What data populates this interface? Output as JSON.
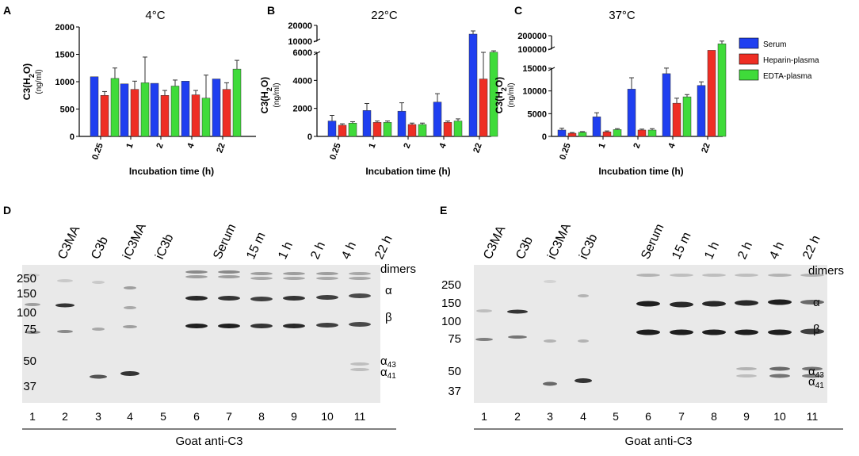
{
  "panels": {
    "A": {
      "letter": "A"
    },
    "B": {
      "letter": "B"
    },
    "C": {
      "letter": "C"
    },
    "D": {
      "letter": "D"
    },
    "E": {
      "letter": "E"
    }
  },
  "chart_data": [
    {
      "type": "bar",
      "panel": "A",
      "title": "4°C",
      "ylabel": "C3(H2O)",
      "ylabel_sub": "2",
      "yunit": "(ng/ml)",
      "xlabel": "Incubation time (h)",
      "categories": [
        "0.25",
        "1",
        "2",
        "4",
        "22"
      ],
      "ylim": [
        0,
        2000
      ],
      "yticks": [
        0,
        500,
        1000,
        1500,
        2000
      ],
      "series": [
        {
          "name": "Serum",
          "values": [
            1090,
            960,
            970,
            1010,
            1050
          ],
          "errors": [
            0,
            0,
            0,
            0,
            0
          ]
        },
        {
          "name": "Heparin-plasma",
          "values": [
            750,
            860,
            750,
            760,
            860
          ],
          "errors": [
            70,
            150,
            90,
            80,
            120
          ]
        },
        {
          "name": "EDTA-plasma",
          "values": [
            1060,
            980,
            920,
            700,
            1230
          ],
          "errors": [
            190,
            470,
            110,
            420,
            160
          ]
        }
      ]
    },
    {
      "type": "bar",
      "panel": "B",
      "title": "22°C",
      "ylabel": "C3(H2O)",
      "ylabel_sub": "2",
      "yunit": "(ng/ml)",
      "xlabel": "Incubation time (h)",
      "categories": [
        "0.25",
        "1",
        "2",
        "4",
        "22"
      ],
      "broken_axis": true,
      "ylim_lower": [
        0,
        6000
      ],
      "ylim_upper": [
        10000,
        20000
      ],
      "yticks": [
        0,
        2000,
        4000,
        6000,
        10000,
        20000
      ],
      "series": [
        {
          "name": "Serum",
          "values": [
            1100,
            1850,
            1800,
            2450,
            14500
          ],
          "errors": [
            400,
            500,
            600,
            600,
            2000
          ]
        },
        {
          "name": "Heparin-plasma",
          "values": [
            800,
            1000,
            850,
            1000,
            4100
          ],
          "errors": [
            100,
            100,
            100,
            100,
            1900
          ]
        },
        {
          "name": "EDTA-plasma",
          "values": [
            950,
            1000,
            850,
            1100,
            6050
          ],
          "errors": [
            100,
            100,
            100,
            150,
            500
          ]
        }
      ]
    },
    {
      "type": "bar",
      "panel": "C",
      "title": "37°C",
      "ylabel": "C3(H2O)",
      "ylabel_sub": "2",
      "yunit": "(ng/ml)",
      "xlabel": "Incubation time (h)",
      "categories": [
        "0.25",
        "1",
        "2",
        "4",
        "22"
      ],
      "broken_axis": true,
      "ylim_lower": [
        0,
        15000
      ],
      "ylim_upper": [
        100000,
        200000
      ],
      "yticks": [
        0,
        5000,
        10000,
        15000,
        100000,
        200000
      ],
      "series": [
        {
          "name": "Serum",
          "values": [
            1400,
            4300,
            10400,
            13800,
            11200
          ],
          "errors": [
            400,
            900,
            2500,
            1600,
            800
          ]
        },
        {
          "name": "Heparin-plasma",
          "values": [
            700,
            1000,
            1400,
            7300,
            95000
          ],
          "errors": [
            150,
            200,
            200,
            1100,
            0
          ]
        },
        {
          "name": "EDTA-plasma",
          "values": [
            900,
            1500,
            1400,
            8700,
            140000
          ],
          "errors": [
            150,
            200,
            300,
            500,
            20000
          ]
        }
      ],
      "legend": {
        "position": "top-right",
        "entries": [
          "Serum",
          "Heparin-plasma",
          "EDTA-plasma"
        ]
      }
    }
  ],
  "colors": {
    "Serum": "#1f3ff0",
    "Heparin-plasma": "#ee2e24",
    "EDTA-plasma": "#3fdb3a"
  },
  "blots": {
    "D": {
      "headers": [
        "C3MA",
        "C3b",
        "iC3MA",
        "iC3b",
        "Serum",
        "15 m",
        "1 h",
        "2 h",
        "4 h",
        "22 h"
      ],
      "mw_markers": [
        "250",
        "150",
        "100",
        "75",
        "50",
        "37"
      ],
      "right_labels": [
        "dimers",
        "α",
        "β",
        "α",
        "43",
        "α",
        "41"
      ],
      "lane_numbers": [
        "1",
        "2",
        "3",
        "4",
        "5",
        "6",
        "7",
        "8",
        "9",
        "10",
        "11"
      ],
      "antibody": "Goat anti-C3"
    },
    "E": {
      "headers": [
        "C3MA",
        "C3b",
        "iC3MA",
        "iC3b",
        "Serum",
        "15 m",
        "1 h",
        "2 h",
        "4 h",
        "22 h"
      ],
      "mw_markers": [
        "250",
        "150",
        "100",
        "75",
        "50",
        "37"
      ],
      "right_labels": [
        "dimers",
        "α",
        "β",
        "α",
        "43",
        "α",
        "41"
      ],
      "lane_numbers": [
        "1",
        "2",
        "3",
        "4",
        "5",
        "6",
        "7",
        "8",
        "9",
        "10",
        "11"
      ],
      "antibody": "Goat anti-C3"
    }
  }
}
